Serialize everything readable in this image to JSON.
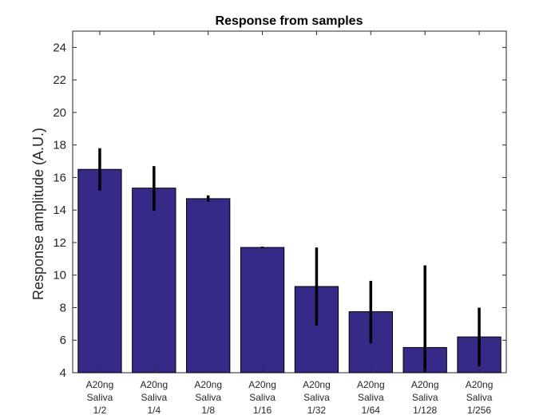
{
  "chart_data": {
    "type": "bar",
    "title": "Response from samples",
    "xlabel": "",
    "ylabel": "Response amplitude (A.U.)",
    "ylim": [
      4,
      25
    ],
    "yticks": [
      4,
      6,
      8,
      10,
      12,
      14,
      16,
      18,
      20,
      22,
      24
    ],
    "categories": [
      [
        "A20ng",
        "Saliva",
        "1/2"
      ],
      [
        "A20ng",
        "Saliva",
        "1/4"
      ],
      [
        "A20ng",
        "Saliva",
        "1/8"
      ],
      [
        "A20ng",
        "Saliva",
        "1/16"
      ],
      [
        "A20ng",
        "Saliva",
        "1/32"
      ],
      [
        "A20ng",
        "Saliva",
        "1/64"
      ],
      [
        "A20ng",
        "Saliva",
        "1/128"
      ],
      [
        "A20ng",
        "Saliva",
        "1/256"
      ]
    ],
    "values": [
      16.5,
      15.35,
      14.7,
      11.7,
      9.3,
      7.75,
      5.55,
      6.2
    ],
    "error_low": [
      15.2,
      13.95,
      14.5,
      11.65,
      6.9,
      5.8,
      4.0,
      4.4
    ],
    "error_high": [
      17.8,
      16.7,
      14.9,
      11.75,
      11.7,
      9.65,
      10.6,
      8.0
    ],
    "grid": false,
    "colors": {
      "bar": "#352a87",
      "bar_edge": "#000000",
      "error_bar": "#000000",
      "axis": "#262626"
    }
  }
}
